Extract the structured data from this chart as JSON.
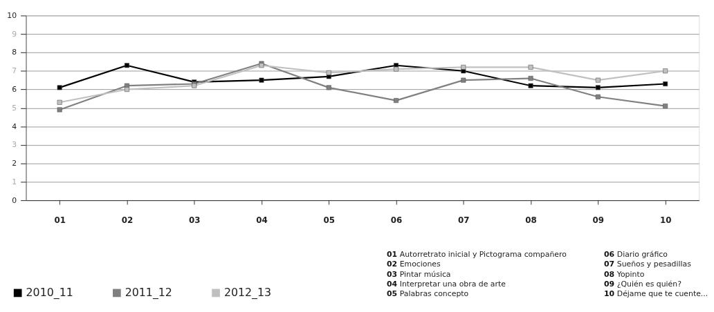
{
  "chart_data": {
    "type": "line",
    "categories": [
      "01",
      "02",
      "03",
      "04",
      "05",
      "06",
      "07",
      "08",
      "09",
      "10"
    ],
    "series": [
      {
        "name": "2010_11",
        "color": "#000000",
        "values": [
          6.1,
          7.3,
          6.4,
          6.5,
          6.7,
          7.3,
          7.0,
          6.2,
          6.1,
          6.3
        ]
      },
      {
        "name": "2011_12",
        "color": "#808080",
        "values": [
          4.9,
          6.2,
          6.3,
          7.4,
          6.1,
          5.4,
          6.5,
          6.6,
          5.6,
          5.1
        ]
      },
      {
        "name": "2012_13",
        "color": "#c0c0c0",
        "values": [
          5.3,
          6.0,
          6.2,
          7.3,
          6.9,
          7.1,
          7.2,
          7.2,
          6.5,
          7.0
        ]
      }
    ],
    "ylim": [
      0,
      10
    ],
    "yticks": [
      0,
      1,
      2,
      3,
      4,
      5,
      6,
      7,
      8,
      9,
      10
    ],
    "grid": "y",
    "legend": "bottom left",
    "marker": "square",
    "line_style": "solid",
    "annotations": [
      "01 Autorretrato inicial y Pictograma compañero",
      "02 Emociones",
      "03 Pintar música",
      "04 Interpretar una obra de arte",
      "05 Palabras concepto",
      "06 Diario gráfico",
      "07 Sueños y pesadillas",
      "08 Yopinto",
      "09 ¿Quién es quién?",
      "10 Déjame que te cuente..."
    ]
  }
}
